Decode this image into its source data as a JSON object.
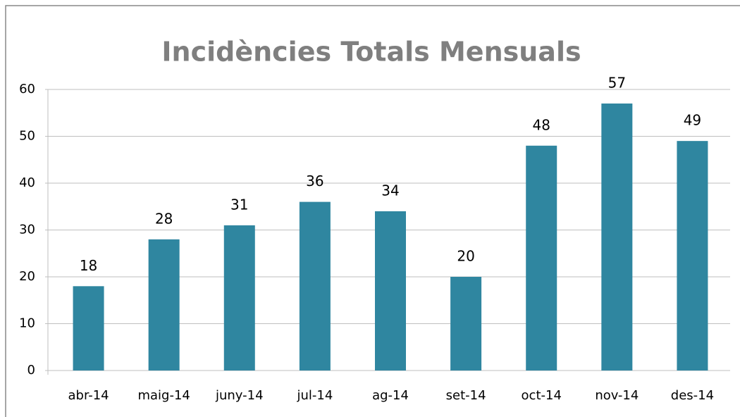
{
  "chart_data": {
    "type": "bar",
    "title": "Incidències Totals Mensuals",
    "categories": [
      "abr-14",
      "maig-14",
      "juny-14",
      "jul-14",
      "ag-14",
      "set-14",
      "oct-14",
      "nov-14",
      "des-14"
    ],
    "values": [
      18,
      28,
      31,
      36,
      34,
      20,
      48,
      57,
      49
    ],
    "color": "#2f86a0",
    "ylim": [
      0,
      60
    ],
    "yticks": [
      0,
      10,
      20,
      30,
      40,
      50,
      60
    ],
    "grid": true
  }
}
